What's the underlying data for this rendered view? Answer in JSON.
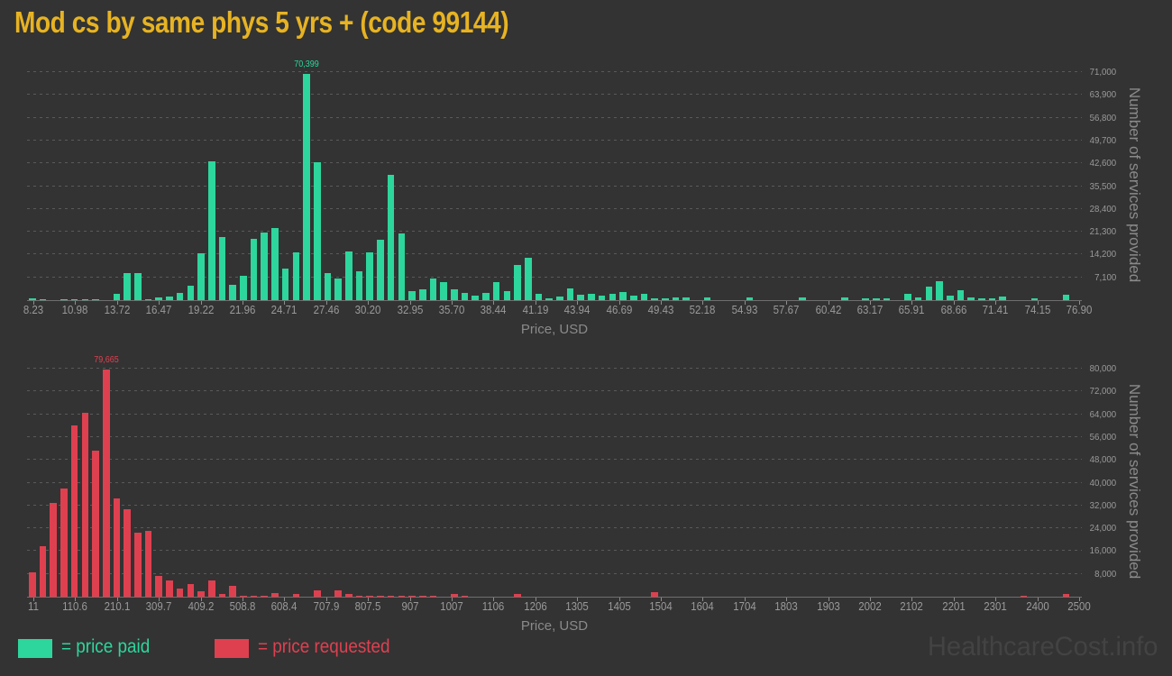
{
  "title": "Mod cs by same phys 5 yrs + (code 99144)",
  "watermark": "HealthcareCost.info",
  "legend": {
    "paid_label": "= price paid",
    "requested_label": "= price requested"
  },
  "colors": {
    "background": "#333333",
    "title": "#e7b322",
    "price_paid": "#2dd69c",
    "price_requested": "#df4050",
    "tick_label": "#9a9a9a",
    "axis_title": "#8a8a8a",
    "gridline": "#5a5a5a",
    "watermark": "#434343"
  },
  "chart_data": [
    {
      "type": "bar",
      "series_name": "price paid",
      "xlabel": "Price, USD",
      "ylabel": "Number of services provided",
      "color": "#2dd69c",
      "x_range": [
        8.23,
        76.9
      ],
      "bin_width": 0.686,
      "ylim": [
        0,
        71000
      ],
      "grid": "dashed horizontal, legend none",
      "peak_label": "70,399",
      "peak_index": 26,
      "x_tick_labels": [
        "8.23",
        "10.98",
        "13.72",
        "16.47",
        "19.22",
        "21.96",
        "24.71",
        "27.46",
        "30.20",
        "32.95",
        "35.70",
        "38.44",
        "41.19",
        "43.94",
        "46.69",
        "49.43",
        "52.18",
        "54.93",
        "57.67",
        "60.42",
        "63.17",
        "65.91",
        "68.66",
        "71.41",
        "74.15",
        "76.90"
      ],
      "y_ticks": [
        {
          "value": 7100,
          "label": "7,100"
        },
        {
          "value": 14200,
          "label": "14,200"
        },
        {
          "value": 21300,
          "label": "21,300"
        },
        {
          "value": 28400,
          "label": "28,400"
        },
        {
          "value": 35500,
          "label": "35,500"
        },
        {
          "value": 42600,
          "label": "42,600"
        },
        {
          "value": 49700,
          "label": "49,700"
        },
        {
          "value": 56800,
          "label": "56,800"
        },
        {
          "value": 63900,
          "label": "63,900"
        },
        {
          "value": 71000,
          "label": "71,000"
        }
      ],
      "values": [
        700,
        400,
        0,
        350,
        350,
        300,
        250,
        0,
        1900,
        8400,
        8500,
        400,
        900,
        1100,
        2300,
        4500,
        14500,
        43200,
        19600,
        4700,
        7500,
        19100,
        21000,
        22400,
        9800,
        15000,
        70399,
        42800,
        8400,
        6700,
        15100,
        8900,
        14900,
        18800,
        39000,
        20700,
        2800,
        3300,
        6700,
        5600,
        3300,
        2300,
        1400,
        2300,
        5600,
        2800,
        11000,
        13200,
        2000,
        600,
        1100,
        3600,
        1700,
        1900,
        1300,
        1900,
        2400,
        1500,
        2000,
        600,
        600,
        750,
        750,
        0,
        750,
        0,
        0,
        0,
        750,
        0,
        0,
        0,
        0,
        750,
        0,
        0,
        0,
        750,
        0,
        530,
        530,
        530,
        0,
        1950,
        890,
        4250,
        6000,
        1400,
        3100,
        890,
        530,
        530,
        1250,
        0,
        0,
        530,
        0,
        0,
        1800,
        0
      ]
    },
    {
      "type": "bar",
      "series_name": "price requested",
      "xlabel": "Price, USD",
      "ylabel": "Number of services provided",
      "color": "#df4050",
      "x_range": [
        11,
        2500
      ],
      "bin_width": 24.89,
      "ylim": [
        0,
        80000
      ],
      "grid": "dashed horizontal, legend none",
      "peak_label": "79,665",
      "peak_index": 7,
      "x_tick_labels": [
        "11",
        "110.6",
        "210.1",
        "309.7",
        "409.2",
        "508.8",
        "608.4",
        "707.9",
        "807.5",
        "907",
        "1007",
        "1106",
        "1206",
        "1305",
        "1405",
        "1504",
        "1604",
        "1704",
        "1803",
        "1903",
        "2002",
        "2102",
        "2201",
        "2301",
        "2400",
        "2500"
      ],
      "y_ticks": [
        {
          "value": 8000,
          "label": "8,000"
        },
        {
          "value": 16000,
          "label": "16,000"
        },
        {
          "value": 24000,
          "label": "24,000"
        },
        {
          "value": 32000,
          "label": "32,000"
        },
        {
          "value": 40000,
          "label": "40,000"
        },
        {
          "value": 48000,
          "label": "48,000"
        },
        {
          "value": 56000,
          "label": "56,000"
        },
        {
          "value": 64000,
          "label": "64,000"
        },
        {
          "value": 72000,
          "label": "72,000"
        },
        {
          "value": 80000,
          "label": "80,000"
        }
      ],
      "values": [
        8600,
        17600,
        32900,
        38100,
        60000,
        64500,
        51100,
        79665,
        34400,
        30700,
        22300,
        23100,
        7400,
        5600,
        2800,
        4500,
        1800,
        5800,
        1000,
        3700,
        400,
        300,
        300,
        1200,
        0,
        800,
        0,
        2200,
        0,
        2200,
        1000,
        400,
        400,
        300,
        400,
        300,
        400,
        300,
        400,
        0,
        800,
        300,
        0,
        0,
        0,
        0,
        800,
        0,
        0,
        0,
        0,
        0,
        0,
        0,
        0,
        0,
        0,
        0,
        0,
        1600,
        0,
        0,
        0,
        0,
        0,
        0,
        0,
        0,
        0,
        0,
        0,
        0,
        0,
        0,
        0,
        0,
        0,
        0,
        0,
        0,
        0,
        0,
        0,
        0,
        0,
        0,
        0,
        0,
        0,
        0,
        0,
        0,
        0,
        0,
        400,
        0,
        0,
        0,
        1000,
        0
      ]
    }
  ]
}
